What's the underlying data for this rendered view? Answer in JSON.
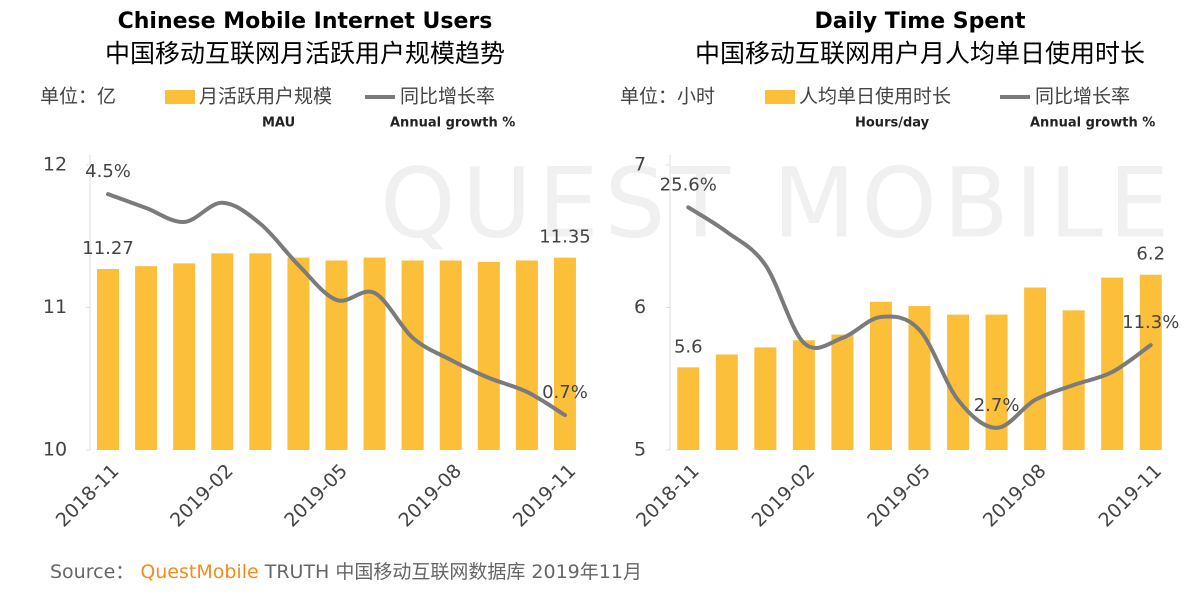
{
  "watermark": "QUEST MOBILE",
  "chart_data": [
    {
      "type": "bar",
      "title": "Chinese Mobile Internet Users",
      "subtitle": "中国移动互联网月活跃用户规模趋势",
      "unit_label": "单位：亿",
      "categories": [
        "2018-11",
        null,
        null,
        "2019-02",
        null,
        null,
        "2019-05",
        null,
        null,
        "2019-08",
        null,
        null,
        "2019-11"
      ],
      "series": [
        {
          "name": "月活跃用户规模",
          "sublabel": "MAU",
          "color": "#fbbf3a",
          "values": [
            11.27,
            11.29,
            11.31,
            11.38,
            11.38,
            11.35,
            11.33,
            11.35,
            11.33,
            11.33,
            11.32,
            11.33,
            11.35
          ],
          "value_labels": [
            "11.27",
            null,
            null,
            null,
            null,
            null,
            null,
            null,
            null,
            null,
            null,
            null,
            "11.35"
          ]
        },
        {
          "name": "同比增长率",
          "sublabel": "Annual growth %",
          "type": "line",
          "axis": "y2",
          "color": "#7b7b7b",
          "values": [
            4.5,
            4.26,
            4.02,
            4.35,
            3.99,
            3.28,
            2.68,
            2.8,
            2.03,
            1.65,
            1.34,
            1.1,
            0.7
          ],
          "value_labels": [
            "4.5%",
            null,
            null,
            null,
            null,
            null,
            null,
            null,
            null,
            null,
            null,
            null,
            "0.7%"
          ]
        }
      ],
      "ylim": [
        10,
        12
      ],
      "yticks": [
        10,
        11,
        12
      ],
      "y2lim": [
        0.1,
        5.0
      ]
    },
    {
      "type": "bar",
      "title": "Daily Time Spent",
      "subtitle": "中国移动互联网用户月人均单日使用时长",
      "unit_label": "单位：小时",
      "categories": [
        "2018-11",
        null,
        null,
        "2019-02",
        null,
        null,
        "2019-05",
        null,
        null,
        "2019-08",
        null,
        null,
        "2019-11"
      ],
      "series": [
        {
          "name": "人均单日使用时长",
          "sublabel": "Hours/day",
          "color": "#fbbf3a",
          "values": [
            5.58,
            5.67,
            5.72,
            5.77,
            5.81,
            6.04,
            6.01,
            5.95,
            5.95,
            6.14,
            5.98,
            6.21,
            6.23
          ],
          "value_labels": [
            "5.6",
            null,
            null,
            null,
            null,
            null,
            null,
            null,
            null,
            null,
            null,
            null,
            "6.2"
          ]
        },
        {
          "name": "同比增长率",
          "sublabel": "Annual growth %",
          "type": "line",
          "axis": "y2",
          "color": "#7b7b7b",
          "values": [
            25.6,
            23.05,
            19.62,
            11.52,
            12.04,
            14.22,
            12.87,
            5.6,
            2.7,
            5.6,
            7.15,
            8.5,
            11.3
          ],
          "value_labels": [
            "25.6%",
            null,
            null,
            null,
            null,
            null,
            null,
            null,
            "2.7%",
            null,
            null,
            null,
            "11.3%"
          ]
        }
      ],
      "ylim": [
        5,
        7
      ],
      "yticks": [
        5,
        6,
        7
      ],
      "y2lim": [
        0.4,
        30
      ]
    }
  ],
  "source": {
    "label": "Source：",
    "brand": "QuestMobile",
    "text": "TRUTH 中国移动互联网数据库 2019年11月"
  }
}
